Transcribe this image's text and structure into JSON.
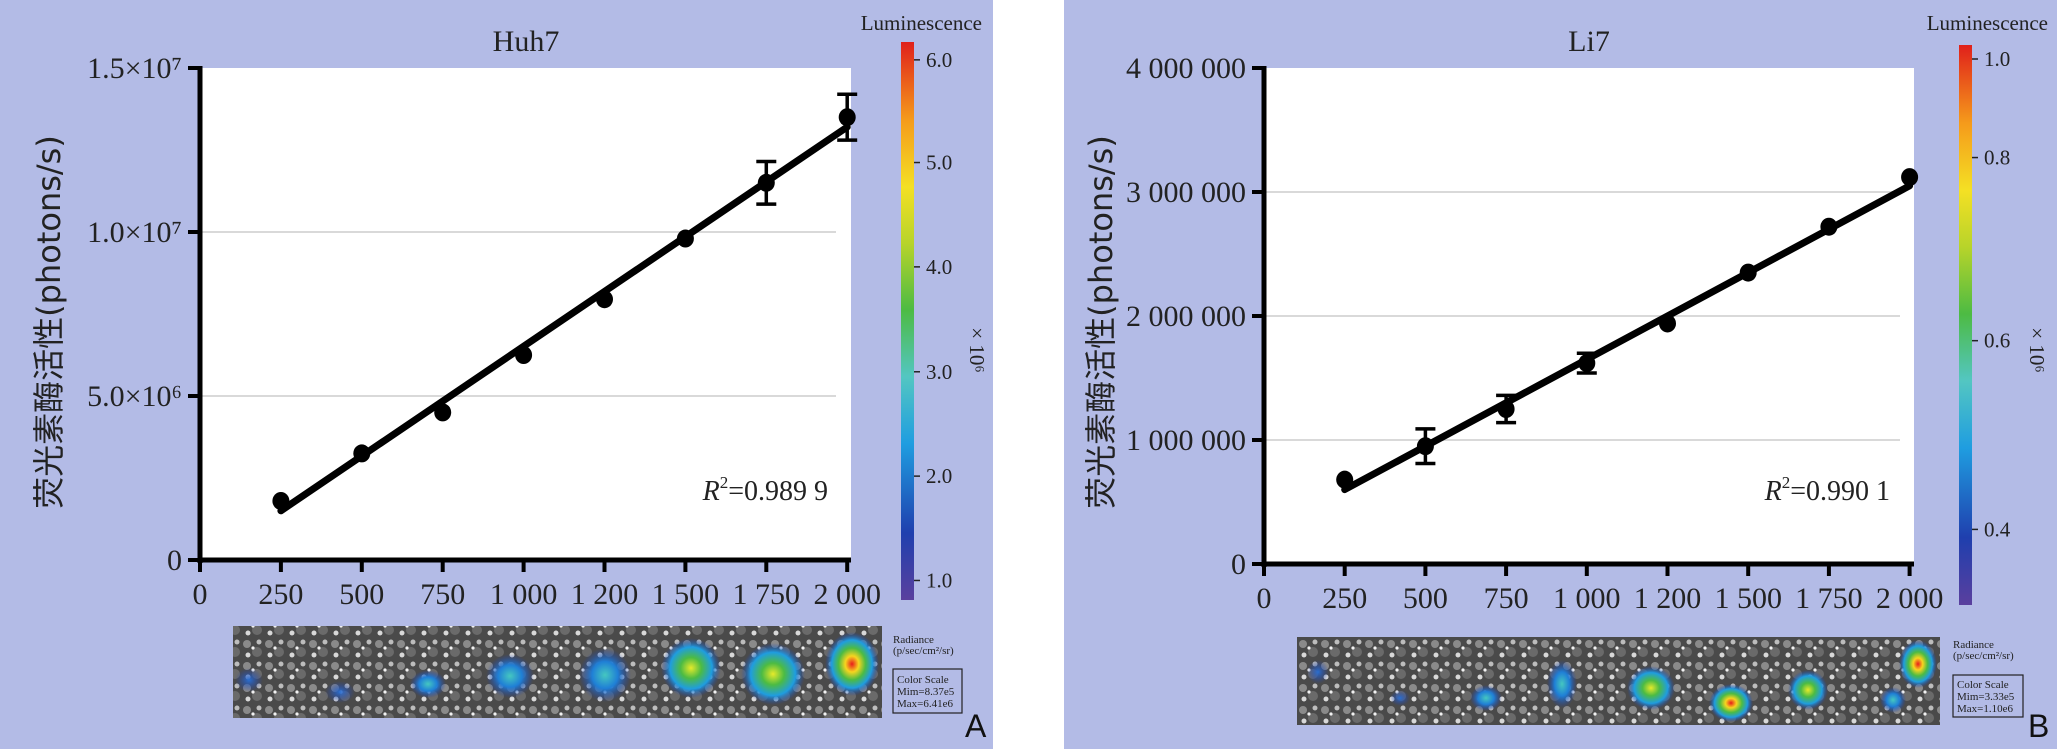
{
  "chart_data": [
    {
      "type": "scatter",
      "title": "Huh7",
      "ylabel": "荧光素酶活性(photons/s)",
      "xlabel": "",
      "categories": [
        "0",
        "250",
        "500",
        "750",
        "1 000",
        "1 200",
        "1 500",
        "1 750",
        "2 000"
      ],
      "ylim": [
        0,
        15000000
      ],
      "y_ticks": [
        {
          "value": 0,
          "label": "0"
        },
        {
          "value": 5000000,
          "label": "5.0×10⁶"
        },
        {
          "value": 10000000,
          "label": "1.0×10⁷"
        },
        {
          "value": 15000000,
          "label": "1.5×10⁷"
        }
      ],
      "series": [
        {
          "points": [
            {
              "x": "250",
              "y": 1800000,
              "err": 0
            },
            {
              "x": "500",
              "y": 3250000,
              "err": 0
            },
            {
              "x": "750",
              "y": 4500000,
              "err": 0
            },
            {
              "x": "1 000",
              "y": 6250000,
              "err": 0
            },
            {
              "x": "1 200",
              "y": 7950000,
              "err": 0
            },
            {
              "x": "1 500",
              "y": 9800000,
              "err": 0
            },
            {
              "x": "1 750",
              "y": 11500000,
              "err": 650000
            },
            {
              "x": "2 000",
              "y": 13500000,
              "err": 700000
            }
          ]
        }
      ],
      "fit_line": {
        "start": {
          "x": "250",
          "y": 1500000
        },
        "end": {
          "x": "2 000",
          "y": 13200000
        }
      },
      "annotation": {
        "r2_symbol": "R",
        "r2_sup": "2",
        "r2_value": "=0.989 9"
      },
      "colorbar": {
        "title": "Luminescence",
        "unit": "× 10⁶",
        "ticks": [
          "1.0",
          "2.0",
          "3.0",
          "4.0",
          "5.0",
          "6.0"
        ],
        "radiance_label": "Radiance",
        "radiance_units": "(p/sec/cm²/sr)",
        "scale_title": "Color Scale",
        "scale_min": "Mim=8.37e5",
        "scale_max": "Max=6.41e6"
      },
      "panel_letter": "A"
    },
    {
      "type": "scatter",
      "title": "Li7",
      "ylabel": "荧光素酶活性(photons/s)",
      "xlabel": "",
      "categories": [
        "0",
        "250",
        "500",
        "750",
        "1 000",
        "1 200",
        "1 500",
        "1 750",
        "2 000"
      ],
      "ylim": [
        0,
        4000000
      ],
      "y_ticks": [
        {
          "value": 0,
          "label": "0"
        },
        {
          "value": 1000000,
          "label": "1 000 000"
        },
        {
          "value": 2000000,
          "label": "2 000 000"
        },
        {
          "value": 3000000,
          "label": "3 000 000"
        },
        {
          "value": 4000000,
          "label": "4 000 000"
        }
      ],
      "series": [
        {
          "points": [
            {
              "x": "250",
              "y": 680000,
              "err": 0
            },
            {
              "x": "500",
              "y": 950000,
              "err": 140000
            },
            {
              "x": "750",
              "y": 1250000,
              "err": 110000
            },
            {
              "x": "1 000",
              "y": 1620000,
              "err": 80000
            },
            {
              "x": "1 200",
              "y": 1940000,
              "err": 0
            },
            {
              "x": "1 500",
              "y": 2350000,
              "err": 0
            },
            {
              "x": "1 750",
              "y": 2720000,
              "err": 0
            },
            {
              "x": "2 000",
              "y": 3120000,
              "err": 0
            }
          ]
        }
      ],
      "fit_line": {
        "start": {
          "x": "250",
          "y": 600000
        },
        "end": {
          "x": "2 000",
          "y": 3050000
        }
      },
      "annotation": {
        "r2_symbol": "R",
        "r2_sup": "2",
        "r2_value": "=0.990 1"
      },
      "colorbar": {
        "title": "Luminescence",
        "unit": "× 10⁶",
        "ticks": [
          "0.4",
          "0.6",
          "0.8",
          "1.0"
        ],
        "radiance_label": "Radiance",
        "radiance_units": "(p/sec/cm²/sr)",
        "scale_title": "Color Scale",
        "scale_min": "Mim=3.33e5",
        "scale_max": "Max=1.10e6"
      },
      "panel_letter": "B"
    }
  ]
}
